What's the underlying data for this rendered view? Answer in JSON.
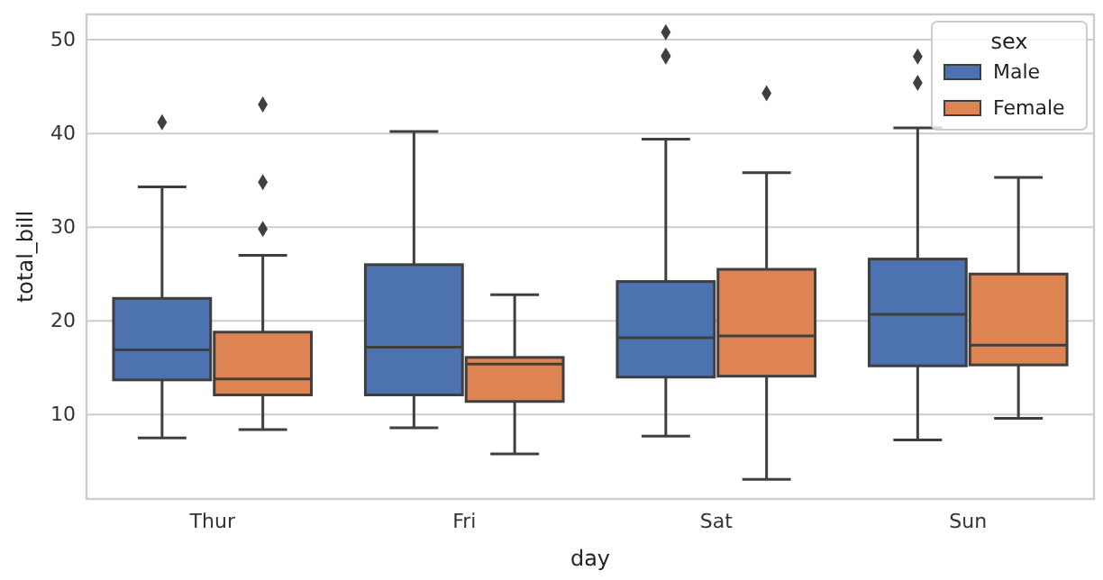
{
  "chart_data": {
    "type": "box",
    "xlabel": "day",
    "ylabel": "total_bill",
    "categories": [
      "Thur",
      "Fri",
      "Sat",
      "Sun"
    ],
    "ylim": [
      1,
      52.7
    ],
    "yticks": [
      10,
      20,
      30,
      40,
      50
    ],
    "grid": "y",
    "legend": "top right",
    "legend_title": "sex",
    "marker": "diamond",
    "series": [
      {
        "name": "Male",
        "color": "#4c72b0",
        "boxes": [
          {
            "low": 7.5,
            "q1": 13.7,
            "median": 16.9,
            "q3": 22.4,
            "high": 34.3,
            "outliers": [
              41.2
            ]
          },
          {
            "low": 8.6,
            "q1": 12.1,
            "median": 17.2,
            "q3": 26.0,
            "high": 40.2
          },
          {
            "low": 7.7,
            "q1": 14.0,
            "median": 18.2,
            "q3": 24.2,
            "high": 39.4,
            "outliers": [
              48.2,
              48.3,
              50.8
            ]
          },
          {
            "low": 7.3,
            "q1": 15.2,
            "median": 20.7,
            "q3": 26.6,
            "high": 40.6,
            "outliers": [
              45.4,
              48.2
            ]
          }
        ]
      },
      {
        "name": "Female",
        "color": "#dd8452",
        "boxes": [
          {
            "low": 8.4,
            "q1": 12.1,
            "median": 13.8,
            "q3": 18.8,
            "high": 27.0,
            "outliers": [
              29.8,
              34.8,
              43.1
            ]
          },
          {
            "low": 5.8,
            "q1": 11.4,
            "median": 15.4,
            "q3": 16.1,
            "high": 22.8
          },
          {
            "low": 3.1,
            "q1": 14.1,
            "median": 18.4,
            "q3": 25.5,
            "high": 35.8,
            "outliers": [
              44.3
            ]
          },
          {
            "low": 9.6,
            "q1": 15.3,
            "median": 17.4,
            "q3": 25.0,
            "high": 35.3
          }
        ]
      }
    ]
  }
}
